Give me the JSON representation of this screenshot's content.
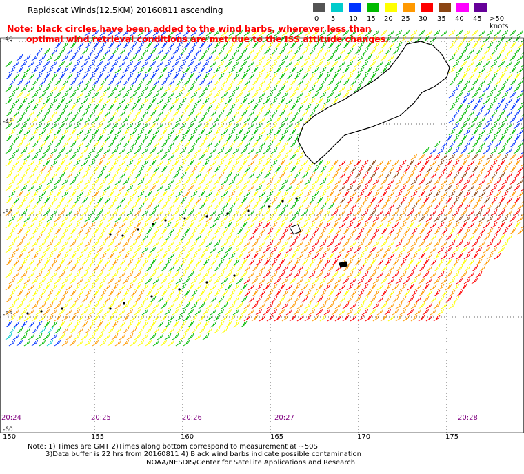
{
  "title": "Rapidscat Winds(12.5KM) 20160811 ascending",
  "note": {
    "line1": "Note: black circles have been added to the wind barbs, wherever less than",
    "line2": "optimal wind retrieval conditions are met due to the ISS attitude changes."
  },
  "legend": {
    "colors": [
      "#545454",
      "#00cccc",
      "#0033ff",
      "#00bb00",
      "#ffff00",
      "#ff9900",
      "#ff0000",
      "#8b4513",
      "#ff00ff",
      "#660099"
    ],
    "labels": [
      "0",
      "5",
      "10",
      "15",
      "20",
      "25",
      "30",
      "35",
      "40",
      "45",
      ">50 knots"
    ]
  },
  "axes": {
    "lon_labels": [
      "150",
      "155",
      "160",
      "165",
      "170",
      "175"
    ],
    "lat_labels": [
      "-40",
      "-45",
      "-50",
      "-55",
      "-60"
    ]
  },
  "time_labels": [
    "20:24",
    "20:25",
    "20:26",
    "20:27",
    "20:28"
  ],
  "footnote": {
    "line1": "Note: 1) Times are GMT 2)Times along bottom correspond to measurement at ~50S",
    "line2": "3)Data buffer is 22 hrs from 20160811 4) Black wind barbs indicate possible contamination"
  },
  "credit": "NOAA/NESDIS/Center for Satellite Applications and Research"
}
